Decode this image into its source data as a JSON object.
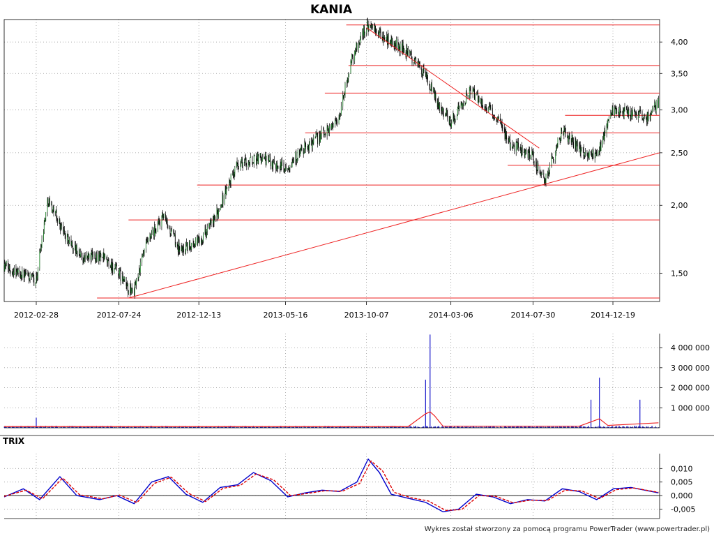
{
  "chart_data": [
    {
      "type": "candlestick",
      "title": "KANIA",
      "x_ticks": [
        "2012-02-28",
        "2012-07-24",
        "2012-12-13",
        "2013-05-16",
        "2013-10-07",
        "2014-03-06",
        "2014-07-30",
        "2014-12-19"
      ],
      "y_ticks": [
        "4,00",
        "3,50",
        "3,00",
        "2,50",
        "2,00",
        "1,50"
      ],
      "y_tick_values": [
        4.0,
        3.5,
        3.0,
        2.5,
        2.0,
        1.5
      ],
      "ylim": [
        1.33,
        4.4
      ],
      "y_scale": "log",
      "grid": true,
      "series": [
        {
          "x": [
            "2012-01-02",
            "2012-02-28",
            "2012-03-20",
            "2012-04-20",
            "2012-05-20",
            "2012-06-20",
            "2012-07-24",
            "2012-08-10",
            "2012-08-20",
            "2012-09-10",
            "2012-10-10",
            "2012-11-10",
            "2012-12-13",
            "2013-01-10",
            "2013-02-20",
            "2013-04-01",
            "2013-05-16",
            "2013-06-20",
            "2013-07-20",
            "2013-08-20",
            "2013-09-10",
            "2013-10-07",
            "2013-11-10",
            "2013-12-10",
            "2014-01-10",
            "2014-02-10",
            "2014-03-06",
            "2014-04-10",
            "2014-05-20",
            "2014-06-20",
            "2014-07-30",
            "2014-08-20",
            "2014-09-20",
            "2014-10-20",
            "2014-11-20",
            "2014-12-19",
            "2015-01-20",
            "2015-02-20",
            "2015-03-10"
          ],
          "close": [
            1.55,
            1.45,
            2.05,
            1.75,
            1.6,
            1.62,
            1.5,
            1.4,
            1.39,
            1.68,
            1.9,
            1.65,
            1.72,
            1.88,
            2.38,
            2.45,
            2.35,
            2.55,
            2.7,
            2.9,
            3.7,
            4.3,
            4.05,
            3.9,
            3.6,
            3.1,
            2.85,
            3.25,
            2.95,
            2.6,
            2.45,
            2.2,
            2.75,
            2.55,
            2.45,
            3.0,
            2.95,
            2.9,
            3.1
          ]
        }
      ],
      "support_resistance_levels": [
        4.3,
        3.62,
        3.22,
        2.93,
        2.72,
        2.37,
        2.18,
        1.88,
        1.35
      ],
      "trendlines": [
        {
          "from": {
            "x": "2012-08-10",
            "y": 1.35
          },
          "to": {
            "x": "2015-03-12",
            "y": 2.5
          }
        },
        {
          "from": {
            "x": "2013-10-07",
            "y": 4.25
          },
          "to": {
            "x": "2014-08-10",
            "y": 2.55
          }
        }
      ]
    },
    {
      "type": "bar",
      "y_ticks": [
        "4 000 000",
        "3 000 000",
        "2 000 000",
        "1 000 000"
      ],
      "y_tick_values": [
        4000000,
        3000000,
        2000000,
        1000000
      ],
      "ylim": [
        0,
        4700000
      ],
      "grid": true,
      "spikes": [
        {
          "x": "2012-02-28",
          "value": 500000
        },
        {
          "x": "2014-01-20",
          "value": 2400000
        },
        {
          "x": "2014-01-28",
          "value": 4650000
        },
        {
          "x": "2014-11-10",
          "value": 1400000
        },
        {
          "x": "2014-11-25",
          "value": 2500000
        },
        {
          "x": "2015-02-05",
          "value": 1400000
        }
      ],
      "average_line": {
        "x": [
          "2012-01-02",
          "2013-12-20",
          "2014-01-20",
          "2014-01-28",
          "2014-02-05",
          "2014-02-20",
          "2014-10-20",
          "2014-11-25",
          "2014-12-10",
          "2015-03-10"
        ],
        "values": [
          60000,
          60000,
          700000,
          800000,
          600000,
          80000,
          80000,
          450000,
          120000,
          250000
        ]
      }
    },
    {
      "type": "line",
      "title": "TRIX",
      "y_ticks": [
        "0,010",
        "0,005",
        "0,000",
        "-0,005"
      ],
      "y_tick_values": [
        0.01,
        0.005,
        0.0,
        -0.005
      ],
      "ylim": [
        -0.0085,
        0.0155
      ],
      "grid": true,
      "series": [
        {
          "color": "#0000cc",
          "x": [
            "2012-01-02",
            "2012-02-05",
            "2012-03-05",
            "2012-04-10",
            "2012-05-10",
            "2012-06-20",
            "2012-07-20",
            "2012-08-20",
            "2012-09-20",
            "2012-10-20",
            "2012-11-20",
            "2012-12-20",
            "2013-01-20",
            "2013-02-20",
            "2013-03-20",
            "2013-04-20",
            "2013-05-20",
            "2013-06-20",
            "2013-07-20",
            "2013-08-20",
            "2013-09-20",
            "2013-10-10",
            "2013-10-30",
            "2013-11-20",
            "2013-12-20",
            "2014-01-20",
            "2014-02-20",
            "2014-03-20",
            "2014-04-20",
            "2014-05-20",
            "2014-06-20",
            "2014-07-20",
            "2014-08-20",
            "2014-09-20",
            "2014-10-20",
            "2014-11-20",
            "2014-12-20",
            "2015-01-20",
            "2015-03-10"
          ],
          "values": [
            -0.0005,
            0.0025,
            -0.0015,
            0.007,
            0.0,
            -0.0015,
            0.0,
            -0.003,
            0.005,
            0.007,
            0.0005,
            -0.0025,
            0.003,
            0.004,
            0.0085,
            0.0055,
            -0.0005,
            0.001,
            0.002,
            0.0015,
            0.005,
            0.0135,
            0.0085,
            0.0005,
            -0.001,
            -0.0025,
            -0.006,
            -0.005,
            0.0005,
            -0.0005,
            -0.003,
            -0.0015,
            -0.002,
            0.0025,
            0.0015,
            -0.0015,
            0.0025,
            0.003,
            0.001
          ]
        },
        {
          "color": "#dd0000",
          "x": [
            "2012-01-02",
            "2012-02-10",
            "2012-03-10",
            "2012-04-15",
            "2012-05-15",
            "2012-06-25",
            "2012-07-25",
            "2012-08-25",
            "2012-09-25",
            "2012-10-25",
            "2012-11-25",
            "2012-12-25",
            "2013-01-25",
            "2013-02-25",
            "2013-03-25",
            "2013-04-25",
            "2013-05-25",
            "2013-06-25",
            "2013-07-25",
            "2013-08-25",
            "2013-09-25",
            "2013-10-15",
            "2013-11-05",
            "2013-11-25",
            "2013-12-25",
            "2014-01-25",
            "2014-02-25",
            "2014-03-25",
            "2014-04-25",
            "2014-05-25",
            "2014-06-25",
            "2014-07-25",
            "2014-08-25",
            "2014-09-25",
            "2014-10-25",
            "2014-11-25",
            "2014-12-25",
            "2015-01-25",
            "2015-03-10"
          ],
          "values": [
            -0.0003,
            0.002,
            -0.0012,
            0.0065,
            0.0003,
            -0.0012,
            0.0002,
            -0.0026,
            0.0045,
            0.0068,
            0.0008,
            -0.0022,
            0.0027,
            0.0038,
            0.008,
            0.0058,
            0.0,
            0.0008,
            0.0018,
            0.0016,
            0.0045,
            0.0128,
            0.009,
            0.0012,
            -0.0008,
            -0.002,
            -0.0055,
            -0.0052,
            0.0,
            -0.0003,
            -0.0027,
            -0.0017,
            -0.0018,
            0.002,
            0.0017,
            -0.0011,
            0.0022,
            0.0028,
            0.0012
          ]
        }
      ]
    }
  ],
  "footer": "Wykres został stworzony za pomocą programu PowerTrader (www.powertrader.pl)"
}
